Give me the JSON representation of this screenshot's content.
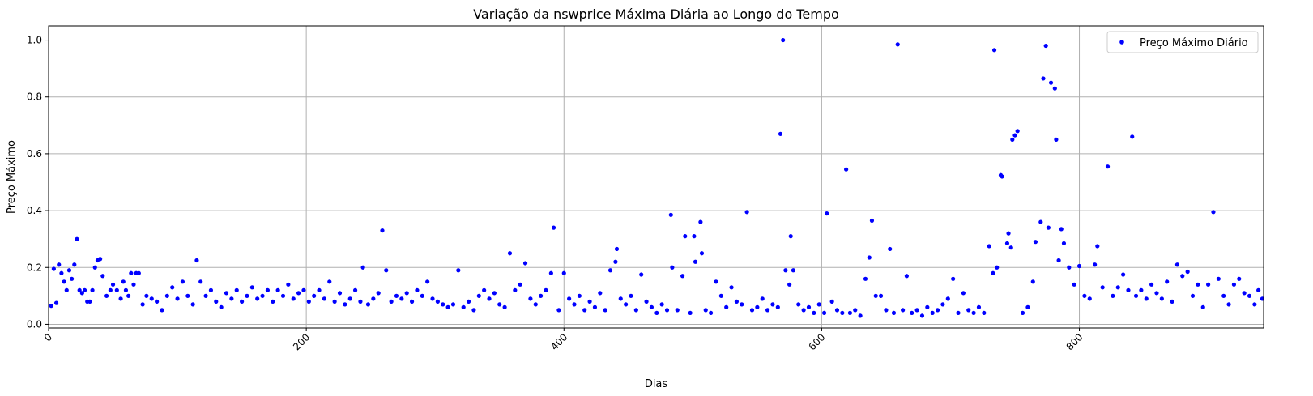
{
  "chart_data": {
    "type": "scatter",
    "title": "Variação da nswprice Máxima Diária ao Longo do Tempo",
    "xlabel": "Dias",
    "ylabel": "Preço Máximo",
    "xlim": [
      0,
      943
    ],
    "ylim": [
      -0.013,
      1.05
    ],
    "xticks": [
      0,
      200,
      400,
      600,
      800
    ],
    "yticks": [
      0.0,
      0.2,
      0.4,
      0.6,
      0.8,
      1.0
    ],
    "xtick_labels": [
      "0",
      "200",
      "400",
      "600",
      "800"
    ],
    "ytick_labels": [
      "0.0",
      "0.2",
      "0.4",
      "0.6",
      "0.8",
      "1.0"
    ],
    "grid": true,
    "legend": {
      "position": "top-right"
    },
    "colors": {
      "points": "#0000ff",
      "grid": "#b0b0b0"
    },
    "series": [
      {
        "name": "Preço Máximo Diário",
        "points": [
          [
            2,
            0.065
          ],
          [
            4,
            0.195
          ],
          [
            6,
            0.075
          ],
          [
            8,
            0.21
          ],
          [
            10,
            0.18
          ],
          [
            12,
            0.15
          ],
          [
            14,
            0.12
          ],
          [
            16,
            0.19
          ],
          [
            18,
            0.16
          ],
          [
            20,
            0.21
          ],
          [
            22,
            0.3
          ],
          [
            24,
            0.12
          ],
          [
            26,
            0.11
          ],
          [
            28,
            0.12
          ],
          [
            30,
            0.08
          ],
          [
            32,
            0.08
          ],
          [
            34,
            0.12
          ],
          [
            36,
            0.2
          ],
          [
            38,
            0.225
          ],
          [
            40,
            0.23
          ],
          [
            42,
            0.17
          ],
          [
            45,
            0.1
          ],
          [
            48,
            0.12
          ],
          [
            50,
            0.14
          ],
          [
            53,
            0.12
          ],
          [
            56,
            0.09
          ],
          [
            58,
            0.15
          ],
          [
            60,
            0.12
          ],
          [
            62,
            0.1
          ],
          [
            64,
            0.18
          ],
          [
            66,
            0.14
          ],
          [
            68,
            0.18
          ],
          [
            70,
            0.18
          ],
          [
            73,
            0.07
          ],
          [
            76,
            0.1
          ],
          [
            80,
            0.09
          ],
          [
            84,
            0.08
          ],
          [
            88,
            0.05
          ],
          [
            92,
            0.1
          ],
          [
            96,
            0.13
          ],
          [
            100,
            0.09
          ],
          [
            104,
            0.15
          ],
          [
            108,
            0.1
          ],
          [
            112,
            0.07
          ],
          [
            115,
            0.225
          ],
          [
            118,
            0.15
          ],
          [
            122,
            0.1
          ],
          [
            126,
            0.12
          ],
          [
            130,
            0.08
          ],
          [
            134,
            0.06
          ],
          [
            138,
            0.11
          ],
          [
            142,
            0.09
          ],
          [
            146,
            0.12
          ],
          [
            150,
            0.08
          ],
          [
            154,
            0.1
          ],
          [
            158,
            0.13
          ],
          [
            162,
            0.09
          ],
          [
            166,
            0.1
          ],
          [
            170,
            0.12
          ],
          [
            174,
            0.08
          ],
          [
            178,
            0.12
          ],
          [
            182,
            0.1
          ],
          [
            186,
            0.14
          ],
          [
            190,
            0.09
          ],
          [
            194,
            0.11
          ],
          [
            198,
            0.12
          ],
          [
            202,
            0.08
          ],
          [
            206,
            0.1
          ],
          [
            210,
            0.12
          ],
          [
            214,
            0.09
          ],
          [
            218,
            0.15
          ],
          [
            222,
            0.08
          ],
          [
            226,
            0.11
          ],
          [
            230,
            0.07
          ],
          [
            234,
            0.09
          ],
          [
            238,
            0.12
          ],
          [
            242,
            0.08
          ],
          [
            244,
            0.2
          ],
          [
            248,
            0.07
          ],
          [
            252,
            0.09
          ],
          [
            256,
            0.11
          ],
          [
            259,
            0.33
          ],
          [
            262,
            0.19
          ],
          [
            266,
            0.08
          ],
          [
            270,
            0.1
          ],
          [
            274,
            0.09
          ],
          [
            278,
            0.11
          ],
          [
            282,
            0.08
          ],
          [
            286,
            0.12
          ],
          [
            290,
            0.1
          ],
          [
            294,
            0.15
          ],
          [
            298,
            0.09
          ],
          [
            302,
            0.08
          ],
          [
            306,
            0.07
          ],
          [
            310,
            0.06
          ],
          [
            314,
            0.07
          ],
          [
            318,
            0.19
          ],
          [
            322,
            0.06
          ],
          [
            326,
            0.08
          ],
          [
            330,
            0.05
          ],
          [
            334,
            0.1
          ],
          [
            338,
            0.12
          ],
          [
            342,
            0.09
          ],
          [
            346,
            0.11
          ],
          [
            350,
            0.07
          ],
          [
            354,
            0.06
          ],
          [
            358,
            0.25
          ],
          [
            362,
            0.12
          ],
          [
            366,
            0.14
          ],
          [
            370,
            0.215
          ],
          [
            374,
            0.09
          ],
          [
            378,
            0.07
          ],
          [
            382,
            0.1
          ],
          [
            386,
            0.12
          ],
          [
            390,
            0.18
          ],
          [
            392,
            0.34
          ],
          [
            396,
            0.05
          ],
          [
            400,
            0.18
          ],
          [
            404,
            0.09
          ],
          [
            408,
            0.07
          ],
          [
            412,
            0.1
          ],
          [
            416,
            0.05
          ],
          [
            420,
            0.08
          ],
          [
            424,
            0.06
          ],
          [
            428,
            0.11
          ],
          [
            432,
            0.05
          ],
          [
            436,
            0.19
          ],
          [
            440,
            0.22
          ],
          [
            441,
            0.265
          ],
          [
            444,
            0.09
          ],
          [
            448,
            0.07
          ],
          [
            452,
            0.1
          ],
          [
            456,
            0.05
          ],
          [
            460,
            0.175
          ],
          [
            464,
            0.08
          ],
          [
            468,
            0.06
          ],
          [
            472,
            0.04
          ],
          [
            476,
            0.07
          ],
          [
            480,
            0.05
          ],
          [
            483,
            0.385
          ],
          [
            484,
            0.2
          ],
          [
            488,
            0.05
          ],
          [
            492,
            0.17
          ],
          [
            494,
            0.31
          ],
          [
            498,
            0.04
          ],
          [
            501,
            0.31
          ],
          [
            502,
            0.22
          ],
          [
            506,
            0.36
          ],
          [
            507,
            0.25
          ],
          [
            510,
            0.05
          ],
          [
            514,
            0.04
          ],
          [
            518,
            0.15
          ],
          [
            522,
            0.1
          ],
          [
            526,
            0.06
          ],
          [
            530,
            0.13
          ],
          [
            534,
            0.08
          ],
          [
            538,
            0.07
          ],
          [
            542,
            0.395
          ],
          [
            546,
            0.05
          ],
          [
            550,
            0.06
          ],
          [
            554,
            0.09
          ],
          [
            558,
            0.05
          ],
          [
            562,
            0.07
          ],
          [
            566,
            0.06
          ],
          [
            568,
            0.67
          ],
          [
            570,
            1.0
          ],
          [
            572,
            0.19
          ],
          [
            575,
            0.14
          ],
          [
            576,
            0.31
          ],
          [
            578,
            0.19
          ],
          [
            582,
            0.07
          ],
          [
            586,
            0.05
          ],
          [
            590,
            0.06
          ],
          [
            594,
            0.04
          ],
          [
            598,
            0.07
          ],
          [
            602,
            0.04
          ],
          [
            604,
            0.39
          ],
          [
            608,
            0.08
          ],
          [
            612,
            0.05
          ],
          [
            616,
            0.04
          ],
          [
            619,
            0.545
          ],
          [
            622,
            0.04
          ],
          [
            626,
            0.05
          ],
          [
            630,
            0.03
          ],
          [
            634,
            0.16
          ],
          [
            637,
            0.235
          ],
          [
            639,
            0.365
          ],
          [
            642,
            0.1
          ],
          [
            646,
            0.1
          ],
          [
            650,
            0.05
          ],
          [
            653,
            0.265
          ],
          [
            656,
            0.04
          ],
          [
            659,
            0.985
          ],
          [
            663,
            0.05
          ],
          [
            666,
            0.17
          ],
          [
            670,
            0.04
          ],
          [
            674,
            0.05
          ],
          [
            678,
            0.03
          ],
          [
            682,
            0.06
          ],
          [
            686,
            0.04
          ],
          [
            690,
            0.05
          ],
          [
            694,
            0.07
          ],
          [
            698,
            0.09
          ],
          [
            702,
            0.16
          ],
          [
            706,
            0.04
          ],
          [
            710,
            0.11
          ],
          [
            714,
            0.05
          ],
          [
            718,
            0.04
          ],
          [
            722,
            0.06
          ],
          [
            726,
            0.04
          ],
          [
            730,
            0.275
          ],
          [
            733,
            0.18
          ],
          [
            734,
            0.965
          ],
          [
            736,
            0.2
          ],
          [
            739,
            0.525
          ],
          [
            740,
            0.52
          ],
          [
            744,
            0.285
          ],
          [
            745,
            0.32
          ],
          [
            747,
            0.27
          ],
          [
            748,
            0.65
          ],
          [
            750,
            0.665
          ],
          [
            752,
            0.68
          ],
          [
            756,
            0.04
          ],
          [
            760,
            0.06
          ],
          [
            764,
            0.15
          ],
          [
            766,
            0.29
          ],
          [
            770,
            0.36
          ],
          [
            772,
            0.865
          ],
          [
            774,
            0.98
          ],
          [
            776,
            0.34
          ],
          [
            778,
            0.85
          ],
          [
            781,
            0.83
          ],
          [
            782,
            0.65
          ],
          [
            784,
            0.225
          ],
          [
            786,
            0.335
          ],
          [
            788,
            0.285
          ],
          [
            792,
            0.2
          ],
          [
            796,
            0.14
          ],
          [
            800,
            0.205
          ],
          [
            804,
            0.1
          ],
          [
            808,
            0.09
          ],
          [
            812,
            0.21
          ],
          [
            814,
            0.275
          ],
          [
            818,
            0.13
          ],
          [
            822,
            0.555
          ],
          [
            826,
            0.1
          ],
          [
            830,
            0.13
          ],
          [
            834,
            0.175
          ],
          [
            838,
            0.12
          ],
          [
            841,
            0.66
          ],
          [
            844,
            0.1
          ],
          [
            848,
            0.12
          ],
          [
            852,
            0.09
          ],
          [
            856,
            0.14
          ],
          [
            860,
            0.11
          ],
          [
            864,
            0.09
          ],
          [
            868,
            0.15
          ],
          [
            872,
            0.08
          ],
          [
            876,
            0.21
          ],
          [
            880,
            0.17
          ],
          [
            884,
            0.185
          ],
          [
            888,
            0.1
          ],
          [
            892,
            0.14
          ],
          [
            896,
            0.06
          ],
          [
            900,
            0.14
          ],
          [
            904,
            0.395
          ],
          [
            908,
            0.16
          ],
          [
            912,
            0.1
          ],
          [
            916,
            0.07
          ],
          [
            920,
            0.14
          ],
          [
            924,
            0.16
          ],
          [
            928,
            0.11
          ],
          [
            932,
            0.1
          ],
          [
            936,
            0.07
          ],
          [
            939,
            0.12
          ],
          [
            942,
            0.09
          ]
        ]
      }
    ]
  }
}
